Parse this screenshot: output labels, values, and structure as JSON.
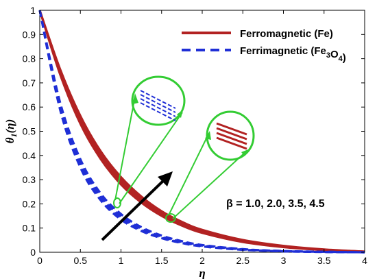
{
  "chart_data": {
    "type": "line",
    "xlabel": "η",
    "ylabel": {
      "base": "θ",
      "sub": "1",
      "arg": "(η)"
    },
    "xlim": [
      0,
      4
    ],
    "ylim": [
      0,
      1
    ],
    "xticks": [
      0,
      0.5,
      1,
      1.5,
      2,
      2.5,
      3,
      3.5,
      4
    ],
    "xtick_labels": [
      "0",
      "0.5",
      "1",
      "1.5",
      "2",
      "2.5",
      "3",
      "3.5",
      "4"
    ],
    "yticks": [
      0,
      0.1,
      0.2,
      0.3,
      0.4,
      0.5,
      0.6,
      0.7,
      0.8,
      0.9,
      1
    ],
    "ytick_labels": [
      "0",
      "0.1",
      "0.2",
      "0.3",
      "0.4",
      "0.5",
      "0.6",
      "0.7",
      "0.8",
      "0.9",
      "1"
    ],
    "grid": false,
    "legend_position": "top-right",
    "series": [
      {
        "name": "Ferromagnetic (Fe)",
        "name_parts": [
          {
            "text": "Ferromagnetic (Fe)"
          }
        ],
        "color": "#b22222",
        "style": "solid",
        "x": [
          0,
          0.25,
          0.5,
          0.75,
          1.0,
          1.25,
          1.5,
          1.75,
          2.0,
          2.5,
          3.0,
          3.5,
          4.0
        ],
        "values_by_beta": [
          [
            1,
            0.735,
            0.53,
            0.385,
            0.28,
            0.205,
            0.15,
            0.11,
            0.08,
            0.042,
            0.021,
            0.009,
            0.002
          ],
          [
            1,
            0.742,
            0.54,
            0.395,
            0.29,
            0.213,
            0.156,
            0.115,
            0.084,
            0.045,
            0.023,
            0.01,
            0.002
          ],
          [
            1,
            0.75,
            0.552,
            0.406,
            0.3,
            0.222,
            0.163,
            0.12,
            0.088,
            0.048,
            0.025,
            0.011,
            0.003
          ],
          [
            1,
            0.758,
            0.564,
            0.418,
            0.311,
            0.231,
            0.17,
            0.126,
            0.093,
            0.051,
            0.027,
            0.012,
            0.003
          ]
        ]
      },
      {
        "name": "Ferrimagnetic (Fe3O4)",
        "name_parts": [
          {
            "text": "Ferrimagnetic (Fe"
          },
          {
            "text": "3",
            "sub": true
          },
          {
            "text": "O"
          },
          {
            "text": "4",
            "sub": true
          },
          {
            "text": ")"
          }
        ],
        "color": "#1f2fd6",
        "style": "dashed",
        "x": [
          0,
          0.25,
          0.5,
          0.75,
          1.0,
          1.25,
          1.5,
          1.75,
          2.0,
          2.5,
          3.0,
          3.5,
          4.0
        ],
        "values_by_beta": [
          [
            1,
            0.59,
            0.35,
            0.215,
            0.135,
            0.088,
            0.058,
            0.038,
            0.024,
            0.01,
            0.004,
            0.001,
            0.0
          ],
          [
            1,
            0.6,
            0.36,
            0.224,
            0.142,
            0.093,
            0.061,
            0.04,
            0.026,
            0.011,
            0.004,
            0.001,
            0.0
          ],
          [
            1,
            0.61,
            0.372,
            0.233,
            0.15,
            0.098,
            0.065,
            0.043,
            0.028,
            0.012,
            0.005,
            0.002,
            0.0
          ],
          [
            1,
            0.62,
            0.384,
            0.243,
            0.158,
            0.104,
            0.069,
            0.046,
            0.03,
            0.013,
            0.005,
            0.002,
            0.0
          ]
        ]
      }
    ],
    "annotations": {
      "parameter_text": "β = 1.0, 2.0, 3.5, 4.5",
      "arrow_direction": "increasing β",
      "zoom_callout_color": "#33cc33"
    }
  }
}
